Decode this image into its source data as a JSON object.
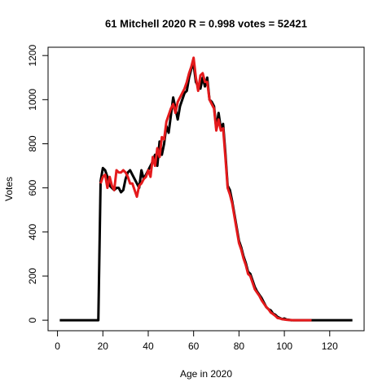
{
  "chart_data": {
    "type": "line",
    "title": "61 Mitchell 2020 R = 0.998 votes = 52421",
    "x_label": "Age in 2020",
    "y_label": "Votes",
    "x": [
      1,
      2,
      3,
      4,
      5,
      6,
      7,
      8,
      9,
      10,
      11,
      12,
      13,
      14,
      15,
      16,
      17,
      18,
      19,
      20,
      21,
      22,
      23,
      24,
      25,
      26,
      27,
      28,
      29,
      30,
      31,
      32,
      33,
      34,
      35,
      36,
      37,
      38,
      39,
      40,
      41,
      42,
      43,
      44,
      45,
      46,
      47,
      48,
      49,
      50,
      51,
      52,
      53,
      54,
      55,
      56,
      57,
      58,
      59,
      60,
      61,
      62,
      63,
      64,
      65,
      66,
      67,
      68,
      69,
      70,
      71,
      72,
      73,
      74,
      75,
      76,
      77,
      78,
      79,
      80,
      81,
      82,
      83,
      84,
      85,
      86,
      87,
      88,
      89,
      90,
      91,
      92,
      93,
      94,
      95,
      96,
      97,
      98,
      99,
      100,
      101,
      102,
      103,
      104,
      105,
      106,
      107,
      108,
      109,
      110,
      111,
      112,
      113,
      114,
      115,
      116,
      117,
      118,
      119,
      120,
      121,
      122,
      123,
      124,
      125,
      126,
      127,
      128,
      129,
      130
    ],
    "series": [
      {
        "color": "#000000",
        "values": [
          0,
          0,
          0,
          0,
          0,
          0,
          0,
          0,
          0,
          0,
          0,
          0,
          0,
          0,
          0,
          0,
          0,
          0,
          630,
          690,
          680,
          650,
          610,
          600,
          590,
          600,
          600,
          580,
          590,
          640,
          670,
          680,
          660,
          640,
          620,
          600,
          680,
          640,
          660,
          680,
          700,
          720,
          750,
          700,
          810,
          750,
          800,
          880,
          850,
          930,
          1010,
          960,
          910,
          970,
          1000,
          1030,
          1040,
          1100,
          1140,
          1160,
          1080,
          1060,
          1050,
          1100,
          1060,
          1100,
          1000,
          990,
          970,
          870,
          940,
          870,
          890,
          760,
          610,
          590,
          540,
          480,
          420,
          360,
          330,
          290,
          260,
          220,
          210,
          180,
          150,
          130,
          115,
          100,
          80,
          60,
          50,
          45,
          30,
          25,
          15,
          10,
          5,
          8,
          3,
          2,
          0,
          0,
          0,
          0,
          0,
          0,
          0,
          0,
          0,
          0,
          0,
          0,
          0,
          0,
          0,
          0,
          0,
          0,
          0,
          0,
          0,
          0,
          0,
          0,
          0,
          0,
          0,
          0
        ]
      },
      {
        "color": "#e41a1c",
        "values": [
          null,
          null,
          null,
          null,
          null,
          null,
          null,
          null,
          null,
          null,
          null,
          null,
          null,
          null,
          null,
          null,
          null,
          null,
          620,
          650,
          660,
          600,
          650,
          610,
          590,
          680,
          670,
          670,
          680,
          670,
          650,
          620,
          620,
          590,
          560,
          610,
          620,
          640,
          650,
          680,
          650,
          740,
          700,
          780,
          740,
          830,
          820,
          900,
          930,
          960,
          980,
          940,
          990,
          1010,
          1030,
          1050,
          1080,
          1120,
          1150,
          1190,
          1100,
          1040,
          1110,
          1120,
          1080,
          1080,
          1000,
          980,
          960,
          860,
          910,
          860,
          870,
          740,
          600,
          570,
          530,
          470,
          410,
          350,
          320,
          280,
          250,
          210,
          200,
          170,
          140,
          125,
          110,
          90,
          75,
          60,
          50,
          35,
          28,
          20,
          10,
          8,
          5,
          3,
          2,
          1,
          1,
          0,
          0,
          0,
          0,
          0,
          0,
          0,
          0,
          0,
          null,
          null,
          null,
          null,
          null,
          null,
          null,
          null,
          null,
          null,
          null,
          null,
          null,
          null,
          null,
          null,
          null,
          null
        ]
      }
    ],
    "xlim": [
      -4.16,
      135.16
    ],
    "ylim": [
      -47.6,
      1237.6
    ],
    "xticks": [
      0,
      20,
      40,
      60,
      80,
      100,
      120
    ],
    "yticks": [
      0,
      200,
      400,
      600,
      800,
      1000,
      1200
    ]
  }
}
